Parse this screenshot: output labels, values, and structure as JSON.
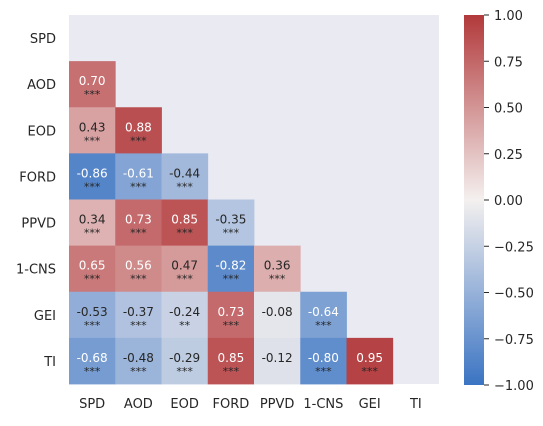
{
  "chart_data": {
    "type": "heatmap",
    "subtype": "lower-triangular correlation matrix",
    "variables": [
      "SPD",
      "AOD",
      "EOD",
      "FORD",
      "PPVD",
      "1-CNS",
      "GEI",
      "TI"
    ],
    "cells": [
      {
        "row": "AOD",
        "col": "SPD",
        "value": 0.7,
        "sig": "***"
      },
      {
        "row": "EOD",
        "col": "SPD",
        "value": 0.43,
        "sig": "***"
      },
      {
        "row": "EOD",
        "col": "AOD",
        "value": 0.88,
        "sig": "***"
      },
      {
        "row": "FORD",
        "col": "SPD",
        "value": -0.86,
        "sig": "***"
      },
      {
        "row": "FORD",
        "col": "AOD",
        "value": -0.61,
        "sig": "***"
      },
      {
        "row": "FORD",
        "col": "EOD",
        "value": -0.44,
        "sig": "***"
      },
      {
        "row": "PPVD",
        "col": "SPD",
        "value": 0.34,
        "sig": "***"
      },
      {
        "row": "PPVD",
        "col": "AOD",
        "value": 0.73,
        "sig": "***"
      },
      {
        "row": "PPVD",
        "col": "EOD",
        "value": 0.85,
        "sig": "***"
      },
      {
        "row": "PPVD",
        "col": "FORD",
        "value": -0.35,
        "sig": "***"
      },
      {
        "row": "1-CNS",
        "col": "SPD",
        "value": 0.65,
        "sig": "***"
      },
      {
        "row": "1-CNS",
        "col": "AOD",
        "value": 0.56,
        "sig": "***"
      },
      {
        "row": "1-CNS",
        "col": "EOD",
        "value": 0.47,
        "sig": "***"
      },
      {
        "row": "1-CNS",
        "col": "FORD",
        "value": -0.82,
        "sig": "***"
      },
      {
        "row": "1-CNS",
        "col": "PPVD",
        "value": 0.36,
        "sig": "***"
      },
      {
        "row": "GEI",
        "col": "SPD",
        "value": -0.53,
        "sig": "***"
      },
      {
        "row": "GEI",
        "col": "AOD",
        "value": -0.37,
        "sig": "***"
      },
      {
        "row": "GEI",
        "col": "EOD",
        "value": -0.24,
        "sig": "**"
      },
      {
        "row": "GEI",
        "col": "FORD",
        "value": 0.73,
        "sig": "***"
      },
      {
        "row": "GEI",
        "col": "PPVD",
        "value": -0.08,
        "sig": ""
      },
      {
        "row": "GEI",
        "col": "1-CNS",
        "value": -0.64,
        "sig": "***"
      },
      {
        "row": "TI",
        "col": "SPD",
        "value": -0.68,
        "sig": "***"
      },
      {
        "row": "TI",
        "col": "AOD",
        "value": -0.48,
        "sig": "***"
      },
      {
        "row": "TI",
        "col": "EOD",
        "value": -0.29,
        "sig": "***"
      },
      {
        "row": "TI",
        "col": "FORD",
        "value": 0.85,
        "sig": "***"
      },
      {
        "row": "TI",
        "col": "PPVD",
        "value": -0.12,
        "sig": ""
      },
      {
        "row": "TI",
        "col": "1-CNS",
        "value": -0.8,
        "sig": "***"
      },
      {
        "row": "TI",
        "col": "GEI",
        "value": 0.95,
        "sig": "***"
      }
    ],
    "colorbar": {
      "range": [
        -1.0,
        1.0
      ],
      "ticks": [
        1.0,
        0.75,
        0.5,
        0.25,
        0.0,
        -0.25,
        -0.5,
        -0.75,
        -1.0
      ],
      "tick_labels": [
        "1.00",
        "0.75",
        "0.50",
        "0.25",
        "0.00",
        "−0.25",
        "−0.50",
        "−0.75",
        "−1.00"
      ]
    },
    "colors": {
      "negative": "#3b74c3",
      "neutral": "#f4f0ef",
      "positive": "#b2393b",
      "background": "#eaeaf2"
    },
    "title": "",
    "xlabel": "",
    "ylabel": "",
    "grid": false
  }
}
